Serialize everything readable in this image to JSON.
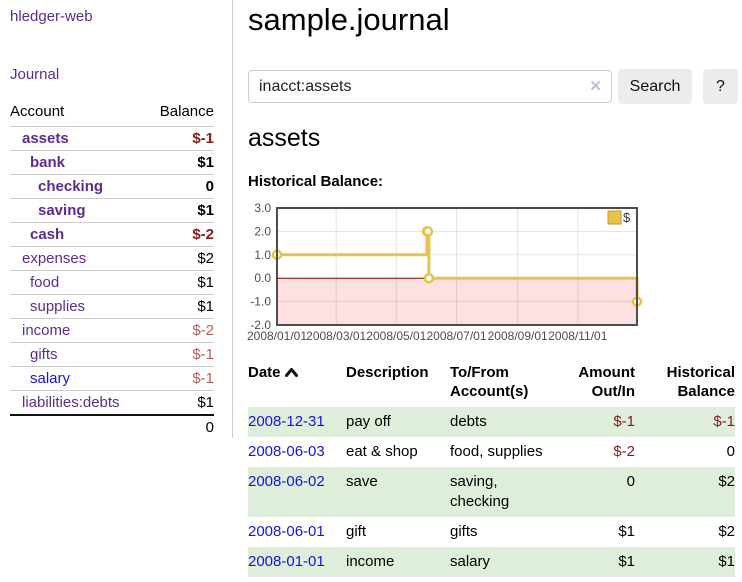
{
  "sidebar": {
    "brand": "hledger-web",
    "journal_link": "Journal",
    "accounts": {
      "col_account": "Account",
      "col_balance": "Balance",
      "rows": [
        {
          "name": "assets",
          "balance": "$-1",
          "indent": 1,
          "emph": true,
          "neg": "strong",
          "link_color": "purple"
        },
        {
          "name": "bank",
          "balance": "$1",
          "indent": 2,
          "emph": true,
          "neg": "none",
          "link_color": "purple"
        },
        {
          "name": "checking",
          "balance": "0",
          "indent": 3,
          "emph": true,
          "neg": "none",
          "link_color": "purple"
        },
        {
          "name": "saving",
          "balance": "$1",
          "indent": 3,
          "emph": true,
          "neg": "none",
          "link_color": "purple"
        },
        {
          "name": "cash",
          "balance": "$-2",
          "indent": 2,
          "emph": true,
          "neg": "strong",
          "link_color": "purple"
        },
        {
          "name": "expenses",
          "balance": "$2",
          "indent": 1,
          "emph": false,
          "neg": "none",
          "link_color": "purple"
        },
        {
          "name": "food",
          "balance": "$1",
          "indent": 2,
          "emph": false,
          "neg": "none",
          "link_color": "purple"
        },
        {
          "name": "supplies",
          "balance": "$1",
          "indent": 2,
          "emph": false,
          "neg": "none",
          "link_color": "purple"
        },
        {
          "name": "income",
          "balance": "$-2",
          "indent": 1,
          "emph": false,
          "neg": "soft",
          "link_color": "purple"
        },
        {
          "name": "gifts",
          "balance": "$-1",
          "indent": 2,
          "emph": false,
          "neg": "soft",
          "link_color": "purple"
        },
        {
          "name": "salary",
          "balance": "$-1",
          "indent": 2,
          "emph": false,
          "neg": "soft",
          "link_color": "blue"
        },
        {
          "name": "liabilities:debts",
          "balance": "$1",
          "indent": 1,
          "emph": false,
          "neg": "none",
          "link_color": "purple"
        }
      ],
      "total": "0"
    }
  },
  "main": {
    "title": "sample.journal",
    "search": {
      "value": "inacct:assets",
      "clear_icon": "✕",
      "search_button": "Search",
      "help_button": "?"
    },
    "heading": "assets",
    "chart_label": "Historical Balance:",
    "register": {
      "headers": {
        "date": "Date",
        "description": "Description",
        "tofrom": "To/From Account(s)",
        "amount": "Amount Out/In",
        "balance": "Historical Balance"
      },
      "rows": [
        {
          "date": "2008-12-31",
          "description": "pay off",
          "tofrom": "debts",
          "amount": "$-1",
          "balance": "$-1",
          "amount_neg": true,
          "balance_neg": true,
          "shaded": true
        },
        {
          "date": "2008-06-03",
          "description": "eat & shop",
          "tofrom": "food, supplies",
          "amount": "$-2",
          "balance": "0",
          "amount_neg": true,
          "balance_neg": false,
          "shaded": false
        },
        {
          "date": "2008-06-02",
          "description": "save",
          "tofrom": "saving, checking",
          "amount": "0",
          "balance": "$2",
          "amount_neg": false,
          "balance_neg": false,
          "shaded": true
        },
        {
          "date": "2008-06-01",
          "description": "gift",
          "tofrom": "gifts",
          "amount": "$1",
          "balance": "$2",
          "amount_neg": false,
          "balance_neg": false,
          "shaded": false
        },
        {
          "date": "2008-01-01",
          "description": "income",
          "tofrom": "salary",
          "amount": "$1",
          "balance": "$1",
          "amount_neg": false,
          "balance_neg": false,
          "shaded": true
        }
      ]
    }
  },
  "chart_data": {
    "type": "line",
    "step": true,
    "title": "Historical Balance:",
    "series": [
      {
        "name": "$",
        "points": [
          {
            "date": "2008-01-01",
            "value": 1
          },
          {
            "date": "2008-06-01",
            "value": 2
          },
          {
            "date": "2008-06-02",
            "value": 2
          },
          {
            "date": "2008-06-03",
            "value": 0
          },
          {
            "date": "2008-12-31",
            "value": -1
          }
        ]
      }
    ],
    "ylim": [
      -2,
      3
    ],
    "yticks": [
      "3.0",
      "2.0",
      "1.0",
      "0.0",
      "-1.0",
      "-2.0"
    ],
    "xticks": [
      {
        "label": "2008/01/01",
        "date": "2008-01-01"
      },
      {
        "label": "2008/03/01",
        "date": "2008-03-01"
      },
      {
        "label": "2008/05/01",
        "date": "2008-05-01"
      },
      {
        "label": "2008/07/01",
        "date": "2008-07-01"
      },
      {
        "label": "2008/09/01",
        "date": "2008-09-01"
      },
      {
        "label": "2008/11/01",
        "date": "2008-11-01"
      }
    ],
    "legend": {
      "label": "$",
      "position": "top-right"
    },
    "grid": true,
    "colors": {
      "line": "#E8C24A",
      "marker_fill": "#ffffff",
      "legend_square_border": "#c2982a",
      "negative_region": "rgba(255,0,0,0.12)",
      "zero_line": "#8b0000",
      "grid": "#e3e3e3",
      "border": "#4d4d4d",
      "tick_text": "#4d4d4d"
    }
  },
  "colors": {
    "link_purple": "#5c2d91",
    "link_blue": "#1414dd",
    "negative_strong": "#8b1a1a",
    "negative_soft": "#b25e5e",
    "row_green": "#dfeeda",
    "button_bg": "#ececec",
    "divider": "#cccccc"
  }
}
